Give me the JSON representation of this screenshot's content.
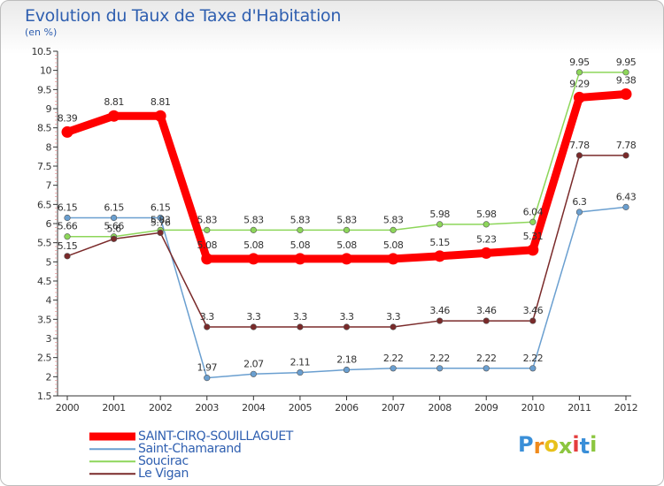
{
  "title": "Evolution du Taux de Taxe d'Habitation",
  "subtitle": "(en %)",
  "logo": {
    "letters": [
      "P",
      "r",
      "o",
      "x",
      "i",
      "t",
      "i"
    ],
    "colors": [
      "#3a8fd8",
      "#f08a1c",
      "#e8c11a",
      "#8cc63f",
      "#e43d3d",
      "#3a8fd8",
      "#8cc63f"
    ]
  },
  "chart_data": {
    "type": "line",
    "x": [
      "2000",
      "2001",
      "2002",
      "2003",
      "2004",
      "2005",
      "2006",
      "2007",
      "2008",
      "2009",
      "2010",
      "2011",
      "2012"
    ],
    "y_ticks": [
      "1.5",
      "2",
      "2.5",
      "3",
      "3.5",
      "4",
      "4.5",
      "5",
      "5.5",
      "6",
      "6.5",
      "7",
      "7.5",
      "8",
      "8.5",
      "9",
      "9.5",
      "10",
      "10.5"
    ],
    "ylim": [
      1.5,
      10.5
    ],
    "grid": false,
    "series": [
      {
        "name": "SAINT-CIRQ-SOUILLAGUET",
        "color": "#ff0000",
        "values": [
          8.39,
          8.81,
          8.81,
          5.08,
          5.08,
          5.08,
          5.08,
          5.08,
          5.15,
          5.23,
          5.31,
          9.29,
          9.38
        ],
        "labels": [
          "8.39",
          "8.81",
          "8.81",
          "5.08",
          "5.08",
          "5.08",
          "5.08",
          "5.08",
          "5.15",
          "5.23",
          "5.31",
          "9.29",
          "9.38"
        ]
      },
      {
        "name": "Saint-Chamarand",
        "color": "#6a9fd0",
        "values": [
          6.15,
          6.15,
          6.15,
          1.97,
          2.07,
          2.11,
          2.18,
          2.22,
          2.22,
          2.22,
          2.22,
          6.3,
          6.43
        ],
        "labels": [
          "6.15",
          "6.15",
          "6.15",
          "1.97",
          "2.07",
          "2.11",
          "2.18",
          "2.22",
          "2.22",
          "2.22",
          "2.22",
          "6.3",
          "6.43"
        ]
      },
      {
        "name": "Soucirac",
        "color": "#8dd65a",
        "values": [
          5.66,
          5.66,
          5.83,
          5.83,
          5.83,
          5.83,
          5.83,
          5.83,
          5.98,
          5.98,
          6.04,
          9.95,
          9.95
        ],
        "labels": [
          "5.66",
          "5.66",
          "5.83",
          "5.83",
          "5.83",
          "5.83",
          "5.83",
          "5.83",
          "5.98",
          "5.98",
          "6.04",
          "9.95",
          "9.95"
        ]
      },
      {
        "name": "Le Vigan",
        "color": "#7a2a2a",
        "values": [
          5.15,
          5.6,
          5.76,
          3.3,
          3.3,
          3.3,
          3.3,
          3.3,
          3.46,
          3.46,
          3.46,
          7.78,
          7.78
        ],
        "labels": [
          "5.15",
          "5.6",
          "5.76",
          "3.3",
          "3.3",
          "3.3",
          "3.3",
          "3.3",
          "3.46",
          "3.46",
          "3.46",
          "7.78",
          "7.78"
        ]
      }
    ]
  }
}
